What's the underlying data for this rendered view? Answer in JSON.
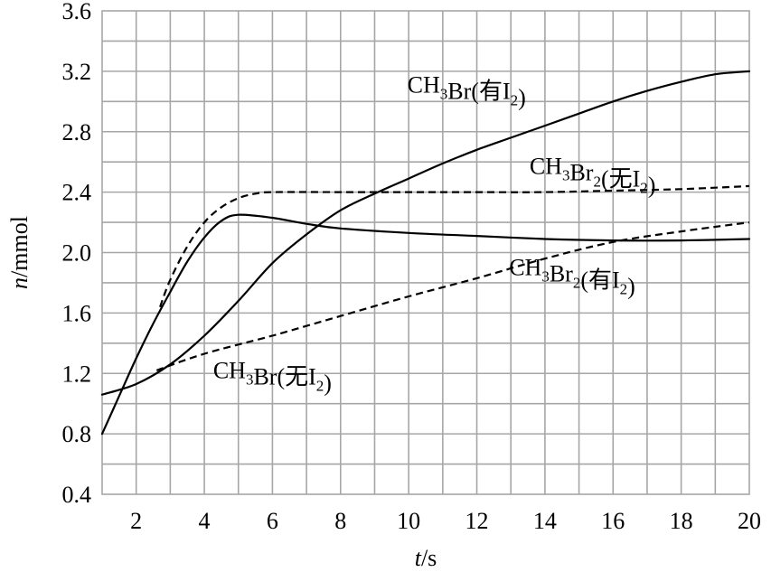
{
  "chart_data": {
    "type": "line",
    "xlabel": {
      "var": "t",
      "unit": "/s"
    },
    "ylabel": {
      "var": "n",
      "unit": "/mmol"
    },
    "xlim": [
      1,
      20
    ],
    "ylim": [
      0.4,
      3.6
    ],
    "xticks": [
      2,
      4,
      6,
      8,
      10,
      12,
      14,
      16,
      18,
      20
    ],
    "yticks": [
      "0.4",
      "0.8",
      "1.2",
      "1.6",
      "2.0",
      "2.4",
      "2.8",
      "3.2",
      "3.6"
    ],
    "grid": {
      "x_step": 1,
      "y_step": 0.2,
      "on": true
    },
    "series": [
      {
        "name": "CH3Br(有I2)",
        "style": "solid",
        "points": [
          [
            1,
            1.06
          ],
          [
            2,
            1.13
          ],
          [
            3,
            1.26
          ],
          [
            4,
            1.45
          ],
          [
            5,
            1.68
          ],
          [
            6,
            1.93
          ],
          [
            7,
            2.12
          ],
          [
            8,
            2.28
          ],
          [
            9,
            2.39
          ],
          [
            10,
            2.49
          ],
          [
            11,
            2.59
          ],
          [
            12,
            2.68
          ],
          [
            13,
            2.76
          ],
          [
            14,
            2.84
          ],
          [
            15,
            2.92
          ],
          [
            16,
            3.0
          ],
          [
            17,
            3.07
          ],
          [
            18,
            3.13
          ],
          [
            19,
            3.18
          ],
          [
            20,
            3.2
          ]
        ]
      },
      {
        "name": "CH3Br2(无I2)",
        "style": "dashed",
        "points": [
          [
            2.7,
            1.64
          ],
          [
            3.0,
            1.82
          ],
          [
            3.5,
            2.04
          ],
          [
            4.0,
            2.2
          ],
          [
            4.5,
            2.3
          ],
          [
            5.0,
            2.36
          ],
          [
            5.5,
            2.39
          ],
          [
            6.0,
            2.4
          ],
          [
            8,
            2.4
          ],
          [
            10,
            2.4
          ],
          [
            12,
            2.4
          ],
          [
            14,
            2.4
          ],
          [
            16,
            2.41
          ],
          [
            18,
            2.42
          ],
          [
            20,
            2.44
          ]
        ]
      },
      {
        "name": "CH3Br2(有I2)",
        "style": "solid",
        "points": [
          [
            1,
            0.8
          ],
          [
            1.5,
            1.05
          ],
          [
            2,
            1.3
          ],
          [
            2.5,
            1.53
          ],
          [
            3,
            1.74
          ],
          [
            3.5,
            1.94
          ],
          [
            4,
            2.1
          ],
          [
            4.5,
            2.21
          ],
          [
            5,
            2.25
          ],
          [
            6,
            2.23
          ],
          [
            7,
            2.19
          ],
          [
            8,
            2.16
          ],
          [
            10,
            2.13
          ],
          [
            12,
            2.11
          ],
          [
            14,
            2.09
          ],
          [
            16,
            2.08
          ],
          [
            18,
            2.08
          ],
          [
            20,
            2.09
          ]
        ]
      },
      {
        "name": "CH3Br(无I2)",
        "style": "dashed",
        "points": [
          [
            2.6,
            1.22
          ],
          [
            4,
            1.33
          ],
          [
            6,
            1.45
          ],
          [
            8,
            1.58
          ],
          [
            10,
            1.71
          ],
          [
            12,
            1.83
          ],
          [
            14,
            1.96
          ],
          [
            16,
            2.07
          ],
          [
            18,
            2.14
          ],
          [
            20,
            2.2
          ]
        ]
      }
    ],
    "annotations": [
      {
        "base": "CH",
        "sub1": "3",
        "mid": "Br",
        "sub2": "",
        "paren": "(有I",
        "sub3": "2",
        "close": ")",
        "x": 11.7,
        "y": 3.06
      },
      {
        "base": "CH",
        "sub1": "3",
        "mid": "Br",
        "sub2": "2",
        "paren": "(无I",
        "sub3": "2",
        "close": ")",
        "x": 15.4,
        "y": 2.52
      },
      {
        "base": "CH",
        "sub1": "3",
        "mid": "Br",
        "sub2": "2",
        "paren": "(有I",
        "sub3": "2",
        "close": ")",
        "x": 14.8,
        "y": 1.85
      },
      {
        "base": "CH",
        "sub1": "3",
        "mid": "Br",
        "sub2": "",
        "paren": "(无I",
        "sub3": "2",
        "close": ")",
        "x": 6.0,
        "y": 1.17
      }
    ]
  }
}
